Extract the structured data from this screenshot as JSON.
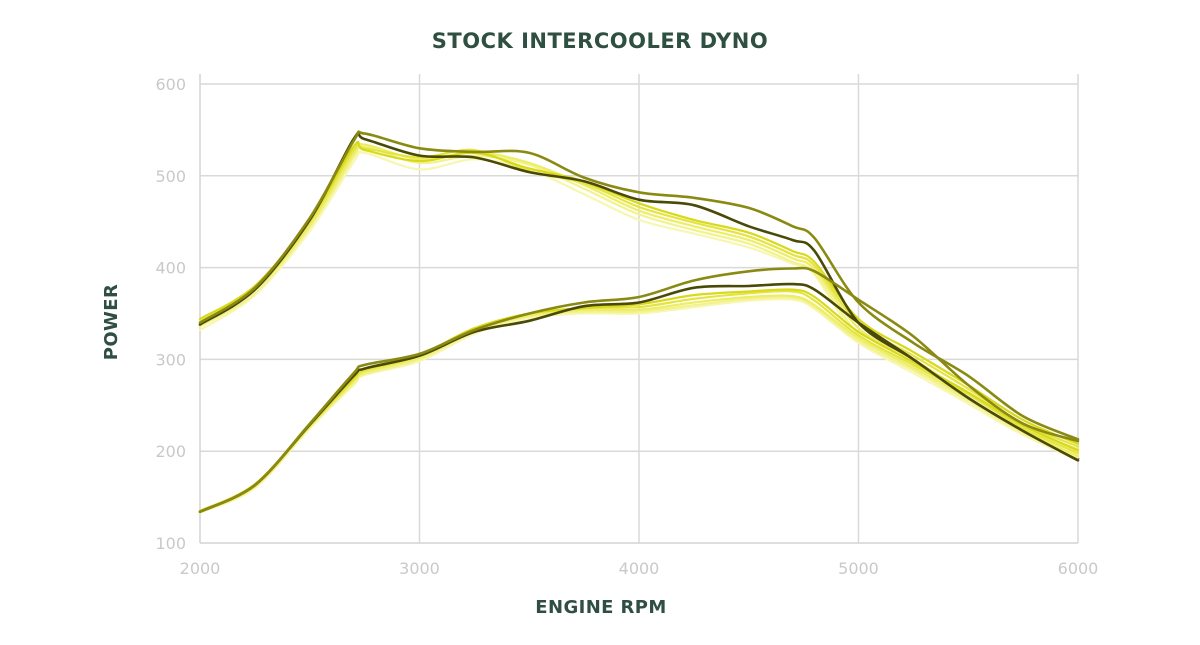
{
  "chart_data": {
    "type": "line",
    "title": "STOCK INTERCOOLER DYNO",
    "xlabel": "ENGINE RPM",
    "ylabel": "POWER",
    "xlim": [
      2000,
      6000
    ],
    "ylim": [
      100,
      600
    ],
    "x_ticks": [
      2000,
      3000,
      4000,
      5000,
      6000
    ],
    "y_ticks": [
      100,
      200,
      300,
      400,
      500,
      600
    ],
    "grid": true,
    "legend": "none",
    "x": [
      2000,
      2250,
      2500,
      2700,
      2750,
      3000,
      3250,
      3500,
      3750,
      4000,
      4250,
      4500,
      4700,
      4800,
      5000,
      5250,
      5500,
      5750,
      6000
    ],
    "series": [
      {
        "group": "upper",
        "color": "#f7f7b0",
        "values": [
          332,
          370,
          440,
          515,
          525,
          507,
          518,
          507,
          480,
          452,
          437,
          422,
          404,
          392,
          322,
          290,
          252,
          218,
          196
        ]
      },
      {
        "group": "upper",
        "color": "#f2f28e",
        "values": [
          336,
          372,
          444,
          520,
          532,
          514,
          522,
          512,
          486,
          458,
          441,
          426,
          406,
          394,
          328,
          294,
          256,
          222,
          200
        ]
      },
      {
        "group": "upper",
        "color": "#eded66",
        "values": [
          338,
          376,
          446,
          524,
          534,
          518,
          526,
          514,
          490,
          462,
          445,
          430,
          410,
          398,
          334,
          300,
          262,
          226,
          202
        ]
      },
      {
        "group": "upper",
        "color": "#e4e440",
        "values": [
          341,
          378,
          450,
          528,
          530,
          520,
          528,
          505,
          492,
          466,
          449,
          434,
          414,
          402,
          339,
          304,
          268,
          230,
          205
        ]
      },
      {
        "group": "upper",
        "color": "#d9d91c",
        "values": [
          344,
          380,
          452,
          532,
          528,
          516,
          525,
          508,
          494,
          470,
          452,
          438,
          418,
          406,
          344,
          308,
          272,
          234,
          208
        ]
      },
      {
        "group": "upper",
        "color": "#4a4a06",
        "values": [
          338,
          376,
          452,
          540,
          540,
          522,
          520,
          504,
          494,
          474,
          468,
          445,
          430,
          418,
          340,
          300,
          258,
          222,
          192
        ]
      },
      {
        "group": "upper",
        "color": "#8a8a12",
        "values": [
          340,
          378,
          454,
          538,
          546,
          530,
          526,
          525,
          498,
          482,
          476,
          465,
          445,
          432,
          362,
          318,
          282,
          238,
          213
        ]
      },
      {
        "group": "lower",
        "color": "#f7f7b0",
        "values": [
          133,
          160,
          225,
          272,
          283,
          298,
          328,
          345,
          350,
          350,
          357,
          364,
          365,
          355,
          318,
          285,
          252,
          218,
          190
        ]
      },
      {
        "group": "lower",
        "color": "#f2f28e",
        "values": [
          134,
          161,
          226,
          274,
          284,
          300,
          330,
          347,
          352,
          352,
          359,
          366,
          367,
          357,
          320,
          288,
          255,
          220,
          193
        ]
      },
      {
        "group": "lower",
        "color": "#eded66",
        "values": [
          134,
          162,
          227,
          276,
          286,
          302,
          332,
          348,
          354,
          354,
          362,
          368,
          369,
          359,
          323,
          291,
          258,
          222,
          195
        ]
      },
      {
        "group": "lower",
        "color": "#e4e440",
        "values": [
          135,
          163,
          228,
          278,
          288,
          304,
          333,
          350,
          356,
          357,
          366,
          372,
          374,
          364,
          326,
          294,
          262,
          225,
          198
        ]
      },
      {
        "group": "lower",
        "color": "#d9d91c",
        "values": [
          135,
          164,
          229,
          280,
          290,
          305,
          334,
          350,
          356,
          360,
          370,
          374,
          376,
          368,
          330,
          297,
          264,
          228,
          201
        ]
      },
      {
        "group": "lower",
        "color": "#4a4a06",
        "values": [
          134,
          163,
          229,
          282,
          290,
          304,
          330,
          342,
          358,
          362,
          378,
          380,
          382,
          376,
          340,
          300,
          258,
          222,
          190
        ]
      },
      {
        "group": "lower",
        "color": "#8a8a12",
        "values": [
          134,
          163,
          230,
          285,
          294,
          306,
          332,
          350,
          362,
          368,
          386,
          396,
          399,
          396,
          365,
          325,
          272,
          230,
          211
        ]
      }
    ]
  }
}
